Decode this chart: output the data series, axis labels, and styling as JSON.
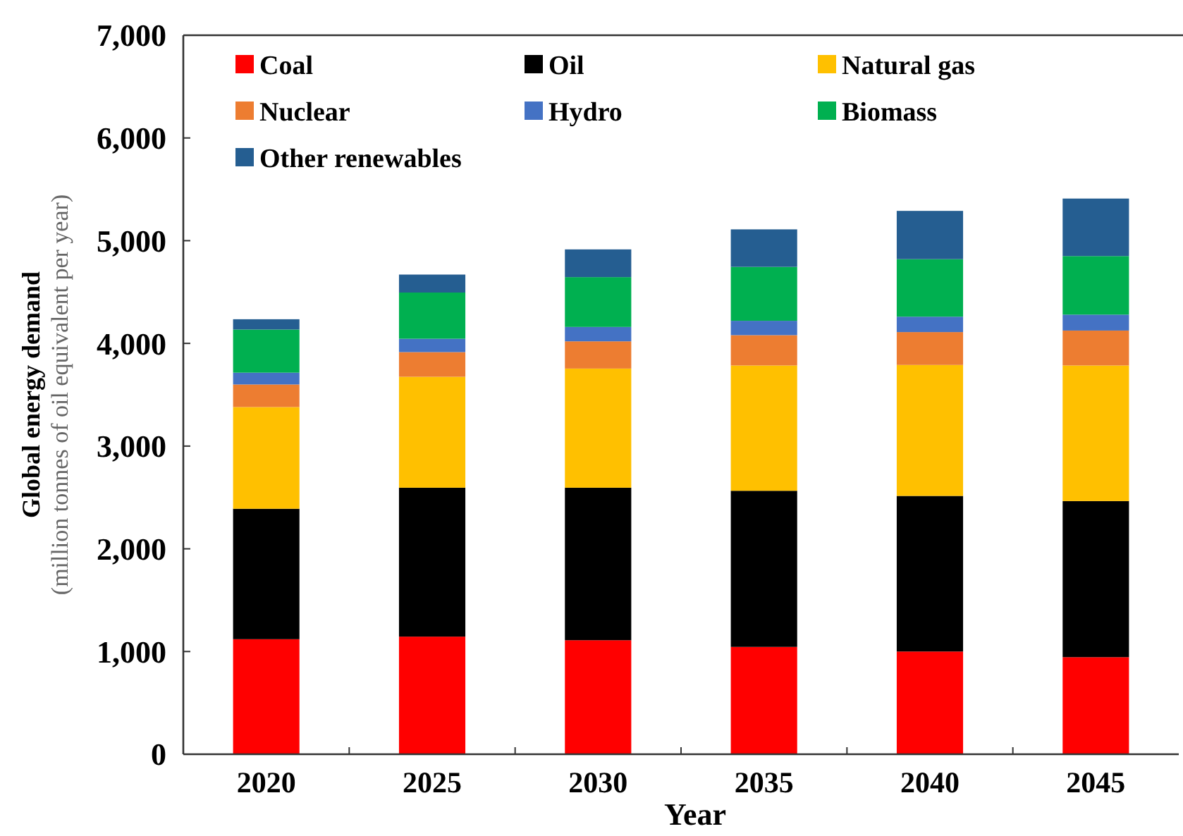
{
  "chart_data": {
    "type": "bar",
    "stacked": true,
    "xlabel": "Year",
    "ylabel": "Global energy demand (million tonnes of oil equivalent per year)",
    "categories": [
      "2020",
      "2025",
      "2030",
      "2035",
      "2040",
      "2045"
    ],
    "series": [
      {
        "name": "Coal",
        "color": "#ff0000",
        "values": [
          1120,
          1145,
          1110,
          1045,
          1000,
          945
        ]
      },
      {
        "name": "Oil",
        "color": "#000000",
        "values": [
          1270,
          1450,
          1485,
          1520,
          1515,
          1520
        ]
      },
      {
        "name": "Natural gas",
        "color": "#ffc000",
        "values": [
          990,
          1080,
          1160,
          1220,
          1275,
          1320
        ]
      },
      {
        "name": "Nuclear",
        "color": "#ed7d31",
        "values": [
          220,
          240,
          265,
          295,
          320,
          340
        ]
      },
      {
        "name": "Hydro",
        "color": "#4472c4",
        "values": [
          115,
          130,
          140,
          140,
          150,
          155
        ]
      },
      {
        "name": "Biomass",
        "color": "#00b050",
        "values": [
          420,
          450,
          485,
          525,
          560,
          570
        ]
      },
      {
        "name": "Other renewables",
        "color": "#255e91",
        "values": [
          100,
          175,
          270,
          365,
          470,
          560
        ]
      }
    ],
    "ylim": [
      0,
      7000
    ],
    "yticks": [
      {
        "value": 0,
        "label": "0"
      },
      {
        "value": 1000,
        "label": "1,000"
      },
      {
        "value": 2000,
        "label": "2,000"
      },
      {
        "value": 3000,
        "label": "3,000"
      },
      {
        "value": 4000,
        "label": "4,000"
      },
      {
        "value": 5000,
        "label": "5,000"
      },
      {
        "value": 6000,
        "label": "6,000"
      },
      {
        "value": 7000,
        "label": "7,000"
      }
    ],
    "legend": "top",
    "grid": false
  }
}
